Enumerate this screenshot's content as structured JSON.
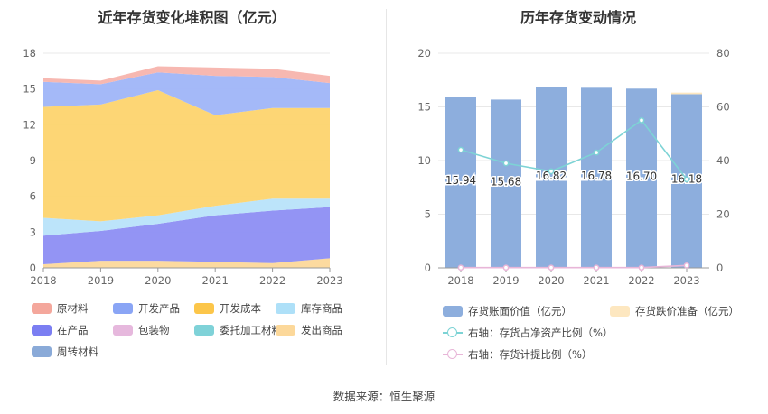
{
  "source_label": "数据来源：恒生聚源",
  "chart_data": [
    {
      "type": "area",
      "title": "近年存货变化堆积图（亿元）",
      "x": [
        "2018",
        "2019",
        "2020",
        "2021",
        "2022",
        "2023"
      ],
      "ylim": [
        0,
        18
      ],
      "yticks": [
        "0",
        "3",
        "6",
        "9",
        "12",
        "15",
        "18"
      ],
      "stacked": true,
      "series": [
        {
          "name": "发出商品",
          "color": "#fcd89a",
          "values": [
            0.3,
            0.6,
            0.6,
            0.5,
            0.4,
            0.8
          ]
        },
        {
          "name": "周转材料",
          "color": "#8aaad8",
          "values": [
            0.0,
            0.0,
            0.0,
            0.0,
            0.0,
            0.0
          ]
        },
        {
          "name": "委托加工材料",
          "color": "#7fd2d8",
          "values": [
            0.0,
            0.0,
            0.0,
            0.0,
            0.0,
            0.0
          ]
        },
        {
          "name": "包装物",
          "color": "#e6b8dd",
          "values": [
            0.0,
            0.0,
            0.0,
            0.0,
            0.0,
            0.0
          ]
        },
        {
          "name": "在产品",
          "color": "#8d8ef3",
          "values": [
            2.4,
            2.5,
            3.1,
            3.9,
            4.4,
            4.3
          ]
        },
        {
          "name": "库存商品",
          "color": "#b8e3fa",
          "values": [
            1.5,
            0.8,
            0.7,
            0.8,
            1.0,
            0.7
          ]
        },
        {
          "name": "开发成本",
          "color": "#fdd46e",
          "values": [
            9.3,
            9.8,
            10.5,
            7.6,
            7.6,
            7.6
          ]
        },
        {
          "name": "开发产品",
          "color": "#9fb5f8",
          "values": [
            2.1,
            1.7,
            1.5,
            3.3,
            2.6,
            2.1
          ]
        },
        {
          "name": "原材料",
          "color": "#f7b4ad",
          "values": [
            0.3,
            0.3,
            0.5,
            0.7,
            0.7,
            0.6
          ]
        }
      ],
      "legend": [
        {
          "name": "原材料",
          "color": "#f4a79c"
        },
        {
          "name": "开发产品",
          "color": "#8aa5f5"
        },
        {
          "name": "开发成本",
          "color": "#fcc64a"
        },
        {
          "name": "库存商品",
          "color": "#aee0f8"
        },
        {
          "name": "在产品",
          "color": "#7b7ef2"
        },
        {
          "name": "包装物",
          "color": "#e6b8dd"
        },
        {
          "name": "委托加工材料",
          "color": "#7fd2d8"
        },
        {
          "name": "发出商品",
          "color": "#fcd89a"
        },
        {
          "name": "周转材料",
          "color": "#8aaad8"
        }
      ]
    },
    {
      "type": "bar",
      "title": "历年存货变动情况",
      "categories": [
        "2018",
        "2019",
        "2020",
        "2021",
        "2022",
        "2023"
      ],
      "ylim": [
        0,
        20
      ],
      "yticks": [
        "0",
        "5",
        "10",
        "15",
        "20"
      ],
      "y2lim": [
        0,
        80
      ],
      "y2ticks": [
        "0",
        "20",
        "40",
        "60",
        "80"
      ],
      "series": [
        {
          "name": "存货账面价值（亿元）",
          "color": "#8daedd",
          "values": [
            15.94,
            15.68,
            16.82,
            16.78,
            16.7,
            16.18
          ],
          "labels": [
            "15.94",
            "15.68",
            "16.82",
            "16.78",
            "16.70",
            "16.18"
          ]
        },
        {
          "name": "存货跌价准备（亿元）",
          "color": "#fde7c0",
          "values": [
            0,
            0,
            0,
            0,
            0,
            0.15
          ]
        },
        {
          "name": "右轴：存货占净资产比例（%）",
          "color": "#7dd3d5",
          "axis": "right",
          "values": [
            44,
            39,
            36,
            43,
            55,
            33
          ]
        },
        {
          "name": "右轴：存货计提比例（%）",
          "color": "#e8b6d8",
          "axis": "right",
          "values": [
            0.1,
            0.1,
            0.1,
            0.1,
            0.1,
            0.9
          ]
        }
      ]
    }
  ]
}
